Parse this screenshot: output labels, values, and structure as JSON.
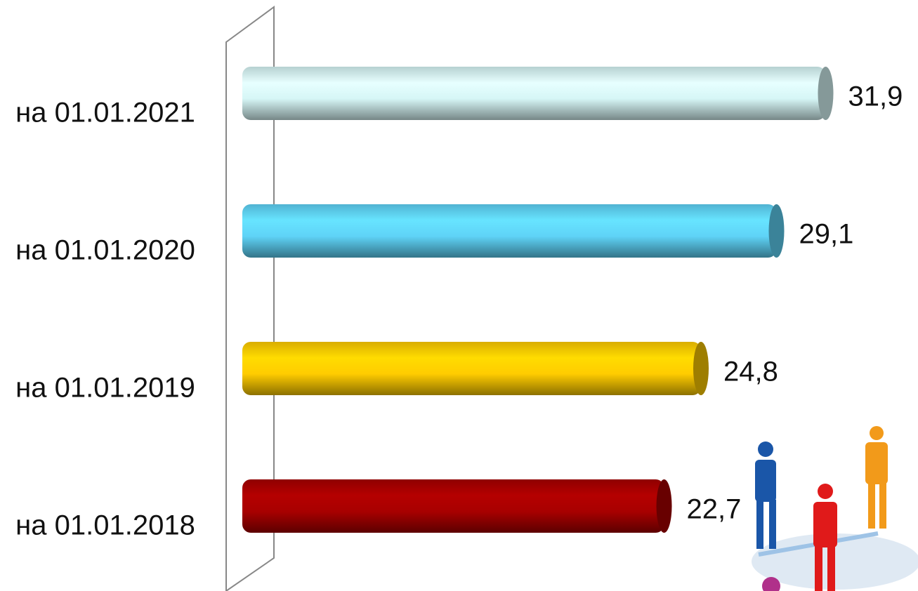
{
  "chart_data": {
    "type": "bar",
    "orientation": "horizontal",
    "categories": [
      "на 01.01.2021",
      "на 01.01.2020",
      "на 01.01.2019",
      "на 01.01.2018"
    ],
    "values": [
      31.9,
      29.1,
      24.8,
      22.7
    ],
    "value_labels": [
      "31,9",
      "29,1",
      "24,8",
      "22,7"
    ],
    "colors": [
      "#d6f6f6",
      "#5fd3f7",
      "#ffcc00",
      "#a80000"
    ]
  }
}
